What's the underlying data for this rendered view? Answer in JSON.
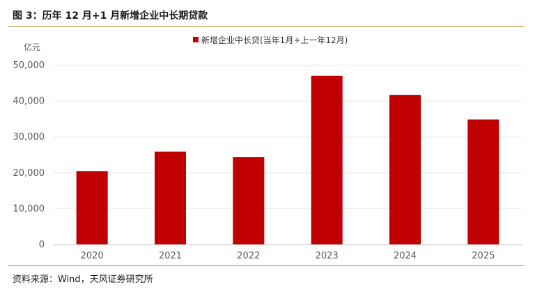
{
  "header": {
    "title": "图 3：历年 12 月+1 月新增企业中长期贷款"
  },
  "footer": {
    "source": "资料来源：Wind，天风证券研究所"
  },
  "chart_data": {
    "type": "bar",
    "title": "图 3：历年 12 月+1 月新增企业中长期贷款",
    "unit_label": "亿元",
    "categories": [
      "2020",
      "2021",
      "2022",
      "2023",
      "2024",
      "2025"
    ],
    "series": [
      {
        "name": "新增企业中长贷(当年1月+上一年12月)",
        "values": [
          20500,
          25900,
          24400,
          47100,
          41700,
          34900
        ],
        "color": "#c00000"
      }
    ],
    "yticks": [
      "0",
      "10,000",
      "20,000",
      "30,000",
      "40,000",
      "50,000"
    ],
    "ylim": [
      0,
      50000
    ],
    "grid": true,
    "legend": "top-center"
  }
}
